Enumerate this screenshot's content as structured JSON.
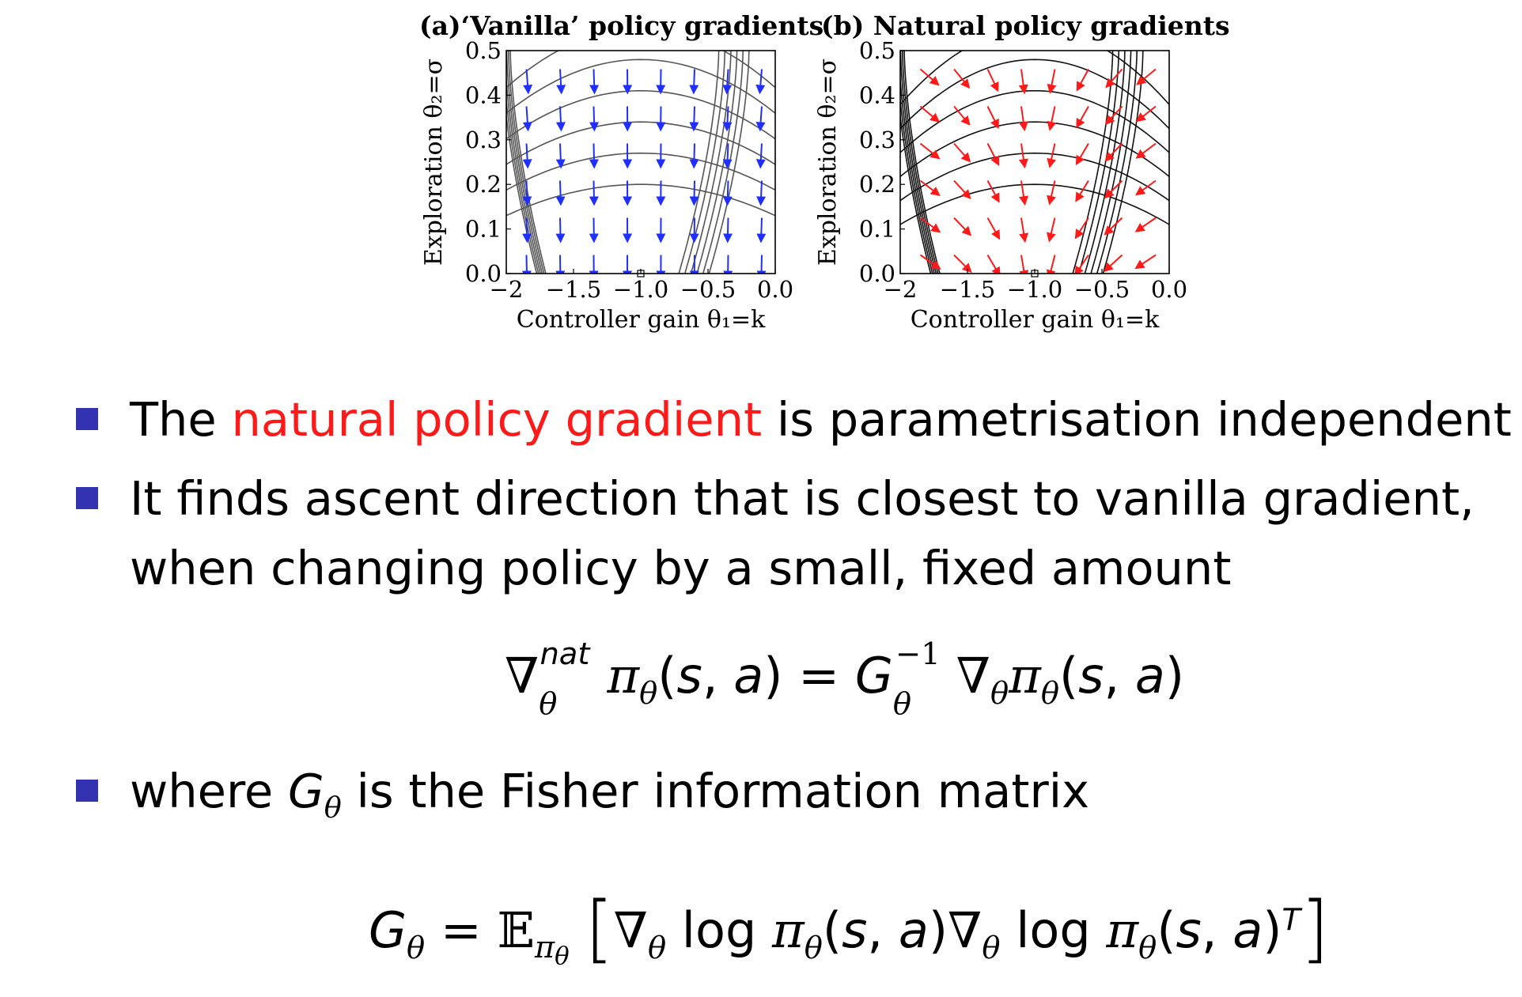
{
  "figures": [
    {
      "id": "a",
      "title": "(a)‘Vanilla’ policy gradients",
      "arrow_color": "#1f2fff",
      "contour_color": "#555555"
    },
    {
      "id": "b",
      "title": "(b) Natural policy gradients",
      "arrow_color": "#ff1a1a",
      "contour_color": "#111111"
    }
  ],
  "chart_data": [
    {
      "type": "quiver",
      "title": "(a)‘Vanilla’ policy gradients",
      "xlabel": "Controller gain θ₁=k",
      "ylabel": "Exploration θ₂=σ",
      "xlim": [
        -2,
        0
      ],
      "ylim": [
        0,
        0.5
      ],
      "xticks": [
        "−2",
        "−1.5",
        "−1.0",
        "−0.5",
        "0.0"
      ],
      "yticks": [
        "0.0",
        "0.1",
        "0.2",
        "0.3",
        "0.4",
        "0.5"
      ],
      "optimum": {
        "x": -1.0,
        "y": 0.0
      }
    },
    {
      "type": "quiver",
      "title": "(b) Natural policy gradients",
      "xlabel": "Controller gain θ₁=k",
      "ylabel": "Exploration θ₂=σ",
      "xlim": [
        -2,
        0
      ],
      "ylim": [
        0,
        0.5
      ],
      "xticks": [
        "−2",
        "−1.5",
        "−1.0",
        "−0.5",
        "0.0"
      ],
      "yticks": [
        "0.0",
        "0.1",
        "0.2",
        "0.3",
        "0.4",
        "0.5"
      ],
      "optimum": {
        "x": -1.0,
        "y": 0.0
      }
    }
  ],
  "bullets": {
    "b1_pre": "The ",
    "b1_red": "natural policy gradient",
    "b1_post": " is parametrisation independent",
    "b2_line1": "It finds ascent direction that is closest to vanilla gradient,",
    "b2_line2": "when changing policy by a small, fixed amount",
    "b3_pre": "where ",
    "b3_sym": "G",
    "b3_sub": "θ",
    "b3_post": " is the Fisher information matrix"
  },
  "accent_color": "#3333b2",
  "highlight_color": "#ff1a1a"
}
